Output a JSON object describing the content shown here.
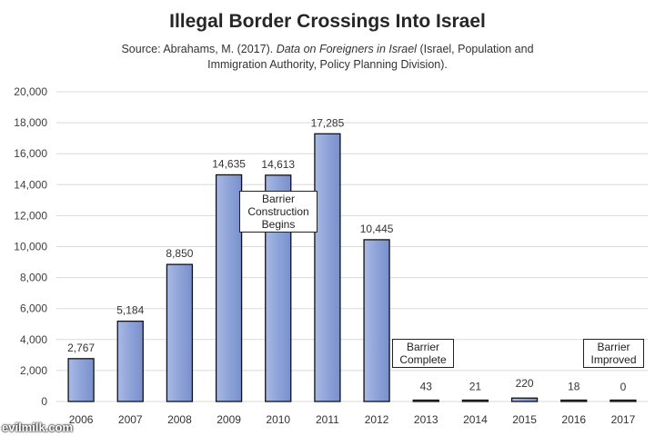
{
  "chart_data": {
    "type": "bar",
    "title": "Illegal Border Crossings Into Israel",
    "subtitle": {
      "prefix": "Source: Abrahams, M. (2017).",
      "italic": "Data on Foreigners in Israel",
      "suffix": "(Israel, Population and Immigration Authority, Policy Planning Division)."
    },
    "categories": [
      "2006",
      "2007",
      "2008",
      "2009",
      "2010",
      "2011",
      "2012",
      "2013",
      "2014",
      "2015",
      "2016",
      "2017"
    ],
    "values": [
      2767,
      5184,
      8850,
      14635,
      14613,
      17285,
      10445,
      43,
      21,
      220,
      18,
      0
    ],
    "data_labels": [
      "2,767",
      "5,184",
      "8,850",
      "14,635",
      "14,613",
      "17,285",
      "10,445",
      "43",
      "21",
      "220",
      "18",
      "0"
    ],
    "ylim": [
      0,
      20000
    ],
    "yticks": [
      0,
      2000,
      4000,
      6000,
      8000,
      10000,
      12000,
      14000,
      16000,
      18000,
      20000
    ],
    "ytick_labels": [
      "0",
      "2,000",
      "4,000",
      "6,000",
      "8,000",
      "10,000",
      "12,000",
      "14,000",
      "16,000",
      "18,000",
      "20,000"
    ],
    "xlabel": "",
    "ylabel": "",
    "grid": true,
    "bar_color": "#8ea3d8",
    "annotations": [
      {
        "text": "Barrier Construction Begins",
        "lines": [
          "Barrier",
          "Construction",
          "Begins"
        ],
        "category": "2010"
      },
      {
        "text": "Barrier Complete",
        "lines": [
          "Barrier",
          "Complete"
        ],
        "category": "2013"
      },
      {
        "text": "Barrier Improved",
        "lines": [
          "Barrier",
          "Improved"
        ],
        "category": "2017"
      }
    ]
  },
  "watermark": "evilmilk.com"
}
